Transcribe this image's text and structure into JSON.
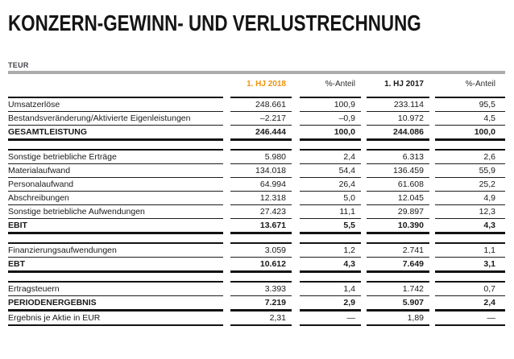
{
  "page": {
    "title": "KONZERN-GEWINN- UND VERLUSTRECHNUNG",
    "unit_label": "TEUR"
  },
  "colors": {
    "accent_orange": "#F0920A",
    "divider_gray": "#ABABAB",
    "text_dark": "#1A1A1A",
    "rule_black": "#121212"
  },
  "table": {
    "header": {
      "col_label": "",
      "col_hj2018": "1. HJ 2018",
      "col_pct_2018": "%-Anteil",
      "col_hj2017": "1. HJ 2017",
      "col_pct_2017": "%-Anteil"
    },
    "sections": [
      {
        "rows": [
          {
            "label": "Umsatzerlöse",
            "v2018": "248.661",
            "p2018": "100,9",
            "v2017": "233.114",
            "p2017": "95,5",
            "bold": false,
            "top": "thick",
            "bottom": "none"
          },
          {
            "label": "Bestandsveränderung/Aktivierte Eigenleistungen",
            "v2018": "–2.217",
            "p2018": "–0,9",
            "v2017": "10.972",
            "p2017": "4,5",
            "bold": false,
            "top": "thin",
            "bottom": "none"
          },
          {
            "label": "GESAMTLEISTUNG",
            "v2018": "246.444",
            "p2018": "100,0",
            "v2017": "244.086",
            "p2017": "100,0",
            "bold": true,
            "top": "thin",
            "bottom": "heavy"
          }
        ]
      },
      {
        "rows": [
          {
            "label": "Sonstige betriebliche Erträge",
            "v2018": "5.980",
            "p2018": "2,4",
            "v2017": "6.313",
            "p2017": "2,6",
            "bold": false,
            "top": "thick",
            "bottom": "none"
          },
          {
            "label": "Materialaufwand",
            "v2018": "134.018",
            "p2018": "54,4",
            "v2017": "136.459",
            "p2017": "55,9",
            "bold": false,
            "top": "thin",
            "bottom": "none"
          },
          {
            "label": "Personalaufwand",
            "v2018": "64.994",
            "p2018": "26,4",
            "v2017": "61.608",
            "p2017": "25,2",
            "bold": false,
            "top": "thin",
            "bottom": "none"
          },
          {
            "label": "Abschreibungen",
            "v2018": "12.318",
            "p2018": "5,0",
            "v2017": "12.045",
            "p2017": "4,9",
            "bold": false,
            "top": "thin",
            "bottom": "none"
          },
          {
            "label": "Sonstige betriebliche Aufwendungen",
            "v2018": "27.423",
            "p2018": "11,1",
            "v2017": "29.897",
            "p2017": "12,3",
            "bold": false,
            "top": "thin",
            "bottom": "none"
          },
          {
            "label": "EBIT",
            "v2018": "13.671",
            "p2018": "5,5",
            "v2017": "10.390",
            "p2017": "4,3",
            "bold": true,
            "top": "thin",
            "bottom": "heavy"
          }
        ]
      },
      {
        "rows": [
          {
            "label": "Finanzierungsaufwendungen",
            "v2018": "3.059",
            "p2018": "1,2",
            "v2017": "2.741",
            "p2017": "1,1",
            "bold": false,
            "top": "thick",
            "bottom": "none"
          },
          {
            "label": "EBT",
            "v2018": "10.612",
            "p2018": "4,3",
            "v2017": "7.649",
            "p2017": "3,1",
            "bold": true,
            "top": "thin",
            "bottom": "heavy"
          }
        ]
      },
      {
        "rows": [
          {
            "label": "Ertragsteuern",
            "v2018": "3.393",
            "p2018": "1,4",
            "v2017": "1.742",
            "p2017": "0,7",
            "bold": false,
            "top": "thick",
            "bottom": "none"
          },
          {
            "label": "PERIODENERGEBNIS",
            "v2018": "7.219",
            "p2018": "2,9",
            "v2017": "5.907",
            "p2017": "2,4",
            "bold": true,
            "top": "thin",
            "bottom": "heavy"
          },
          {
            "label": "Ergebnis je Aktie in EUR",
            "v2018": "2,31",
            "p2018": "—",
            "v2017": "1,89",
            "p2017": "—",
            "bold": false,
            "top": "none",
            "bottom": "med"
          }
        ]
      }
    ]
  }
}
